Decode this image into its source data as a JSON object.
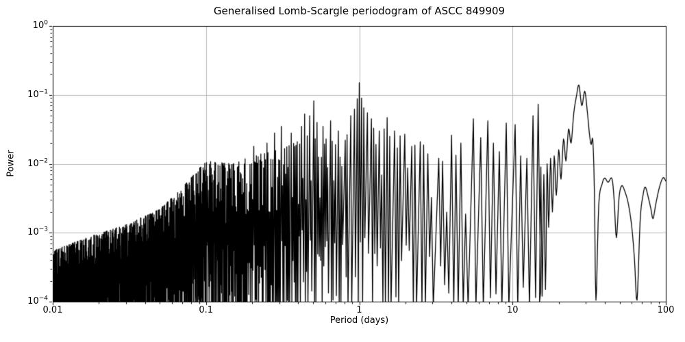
{
  "chart_data": {
    "type": "line",
    "title": "Generalised Lomb-Scargle periodogram of ASCC 849909",
    "xlabel": "Period (days)",
    "ylabel": "Power",
    "xscale": "log",
    "yscale": "log",
    "xlim": [
      0.01,
      100
    ],
    "ylim": [
      0.0001,
      1
    ],
    "grid": true,
    "legend": null,
    "colors": {
      "line": "#000000",
      "grid": "#b0b0b0",
      "axes": "#000000",
      "background": "#ffffff",
      "text": "#000000"
    },
    "x_ticks": [
      {
        "label": "0.01",
        "value": 0.01
      },
      {
        "label": "0.1",
        "value": 0.1
      },
      {
        "label": "1",
        "value": 1
      },
      {
        "label": "10",
        "value": 10
      },
      {
        "label": "100",
        "value": 100
      }
    ],
    "y_ticks": [
      {
        "base": "10",
        "exp": "0",
        "value": 1
      },
      {
        "base": "10",
        "exp": "−1",
        "value": 0.1
      },
      {
        "base": "10",
        "exp": "−2",
        "value": 0.01
      },
      {
        "base": "10",
        "exp": "−3",
        "value": 0.001
      },
      {
        "base": "10",
        "exp": "−4",
        "value": 0.0001
      }
    ],
    "series_model": {
      "description": "Unresolved noisy periodogram for P < 15 d (synthesized from spike-top envelope, spread and forced major peaks); resolved smooth curve for P >= 15 d given by tail_points.",
      "seed": 20,
      "noise_region_limits": [
        0.01,
        15
      ],
      "envelope_log": [
        [
          0.01,
          0.00055
        ],
        [
          0.018,
          0.0009
        ],
        [
          0.03,
          0.0013
        ],
        [
          0.05,
          0.0022
        ],
        [
          0.07,
          0.0045
        ],
        [
          0.1,
          0.011
        ],
        [
          0.15,
          0.01
        ],
        [
          0.2,
          0.013
        ],
        [
          0.3,
          0.016
        ],
        [
          0.45,
          0.026
        ],
        [
          0.55,
          0.022
        ],
        [
          0.8,
          0.026
        ],
        [
          1.0,
          0.045
        ],
        [
          1.3,
          0.038
        ],
        [
          1.8,
          0.026
        ],
        [
          2.5,
          0.02
        ],
        [
          3.5,
          0.016
        ],
        [
          5.0,
          0.022
        ],
        [
          7.0,
          0.026
        ],
        [
          9.0,
          0.026
        ],
        [
          11.0,
          0.022
        ],
        [
          13.0,
          0.016
        ],
        [
          15.0,
          0.013
        ]
      ],
      "spread_decades": [
        [
          0.01,
          0.42
        ],
        [
          0.04,
          0.55
        ],
        [
          0.1,
          0.85
        ],
        [
          0.25,
          0.95
        ],
        [
          0.5,
          1.05
        ],
        [
          1.0,
          1.25
        ],
        [
          2.0,
          1.3
        ],
        [
          5.0,
          1.35
        ],
        [
          15.0,
          1.4
        ]
      ],
      "major_peaks": [
        [
          0.205,
          0.018
        ],
        [
          0.25,
          0.02
        ],
        [
          0.28,
          0.028
        ],
        [
          0.31,
          0.035
        ],
        [
          0.36,
          0.028
        ],
        [
          0.42,
          0.035
        ],
        [
          0.44,
          0.053
        ],
        [
          0.475,
          0.05
        ],
        [
          0.505,
          0.082
        ],
        [
          0.53,
          0.04
        ],
        [
          0.58,
          0.035
        ],
        [
          0.65,
          0.042
        ],
        [
          0.73,
          0.03
        ],
        [
          0.81,
          0.022
        ],
        [
          0.88,
          0.05
        ],
        [
          0.93,
          0.062
        ],
        [
          0.97,
          0.088
        ],
        [
          1.0,
          0.15
        ],
        [
          1.035,
          0.09
        ],
        [
          1.07,
          0.065
        ],
        [
          1.13,
          0.055
        ],
        [
          1.2,
          0.045
        ],
        [
          1.35,
          0.03
        ],
        [
          1.52,
          0.047
        ],
        [
          1.7,
          0.03
        ],
        [
          1.98,
          0.027
        ],
        [
          2.2,
          0.018
        ],
        [
          2.5,
          0.021
        ],
        [
          2.8,
          0.014
        ],
        [
          3.3,
          0.012
        ],
        [
          4.0,
          0.026
        ],
        [
          4.6,
          0.02
        ],
        [
          5.55,
          0.045
        ],
        [
          6.2,
          0.024
        ],
        [
          6.9,
          0.042
        ],
        [
          7.5,
          0.02
        ],
        [
          8.2,
          0.015
        ],
        [
          9.1,
          0.039
        ],
        [
          10.4,
          0.037
        ],
        [
          11.3,
          0.013
        ],
        [
          12.4,
          0.012
        ],
        [
          13.6,
          0.05
        ],
        [
          13.9,
          0.073
        ]
      ],
      "tail_points": [
        [
          15.0,
          0.0001
        ],
        [
          15.3,
          0.009
        ],
        [
          15.6,
          0.00012
        ],
        [
          16.0,
          0.007
        ],
        [
          16.4,
          0.00015
        ],
        [
          16.8,
          0.01
        ],
        [
          17.2,
          0.0012
        ],
        [
          17.7,
          0.012
        ],
        [
          18.2,
          0.002
        ],
        [
          18.7,
          0.013
        ],
        [
          19.3,
          0.0035
        ],
        [
          20.0,
          0.016
        ],
        [
          20.7,
          0.006
        ],
        [
          21.5,
          0.023
        ],
        [
          22.3,
          0.011
        ],
        [
          23.2,
          0.032
        ],
        [
          24.1,
          0.02
        ],
        [
          25.1,
          0.055
        ],
        [
          26.1,
          0.095
        ],
        [
          27.1,
          0.139
        ],
        [
          28.3,
          0.07
        ],
        [
          29.6,
          0.113
        ],
        [
          30.8,
          0.055
        ],
        [
          31.8,
          0.026
        ],
        [
          32.6,
          0.019
        ],
        [
          33.4,
          0.022
        ],
        [
          34.2,
          0.004
        ],
        [
          35.0,
          0.000105
        ],
        [
          36.5,
          0.0025
        ],
        [
          38.5,
          0.0052
        ],
        [
          40.0,
          0.0062
        ],
        [
          42.0,
          0.0054
        ],
        [
          44.5,
          0.0061
        ],
        [
          46.0,
          0.003
        ],
        [
          47.6,
          0.00085
        ],
        [
          49.5,
          0.0032
        ],
        [
          51.5,
          0.0048
        ],
        [
          54.0,
          0.004
        ],
        [
          57.0,
          0.0026
        ],
        [
          60.0,
          0.0012
        ],
        [
          62.5,
          0.0004
        ],
        [
          64.9,
          0.000105
        ],
        [
          68.0,
          0.0015
        ],
        [
          71.0,
          0.0035
        ],
        [
          73.5,
          0.0046
        ],
        [
          77.0,
          0.0032
        ],
        [
          80.0,
          0.0022
        ],
        [
          82.5,
          0.0016
        ],
        [
          86.0,
          0.0026
        ],
        [
          90.0,
          0.0042
        ],
        [
          94.0,
          0.0058
        ],
        [
          97.0,
          0.0063
        ],
        [
          100.0,
          0.0056
        ]
      ]
    }
  }
}
